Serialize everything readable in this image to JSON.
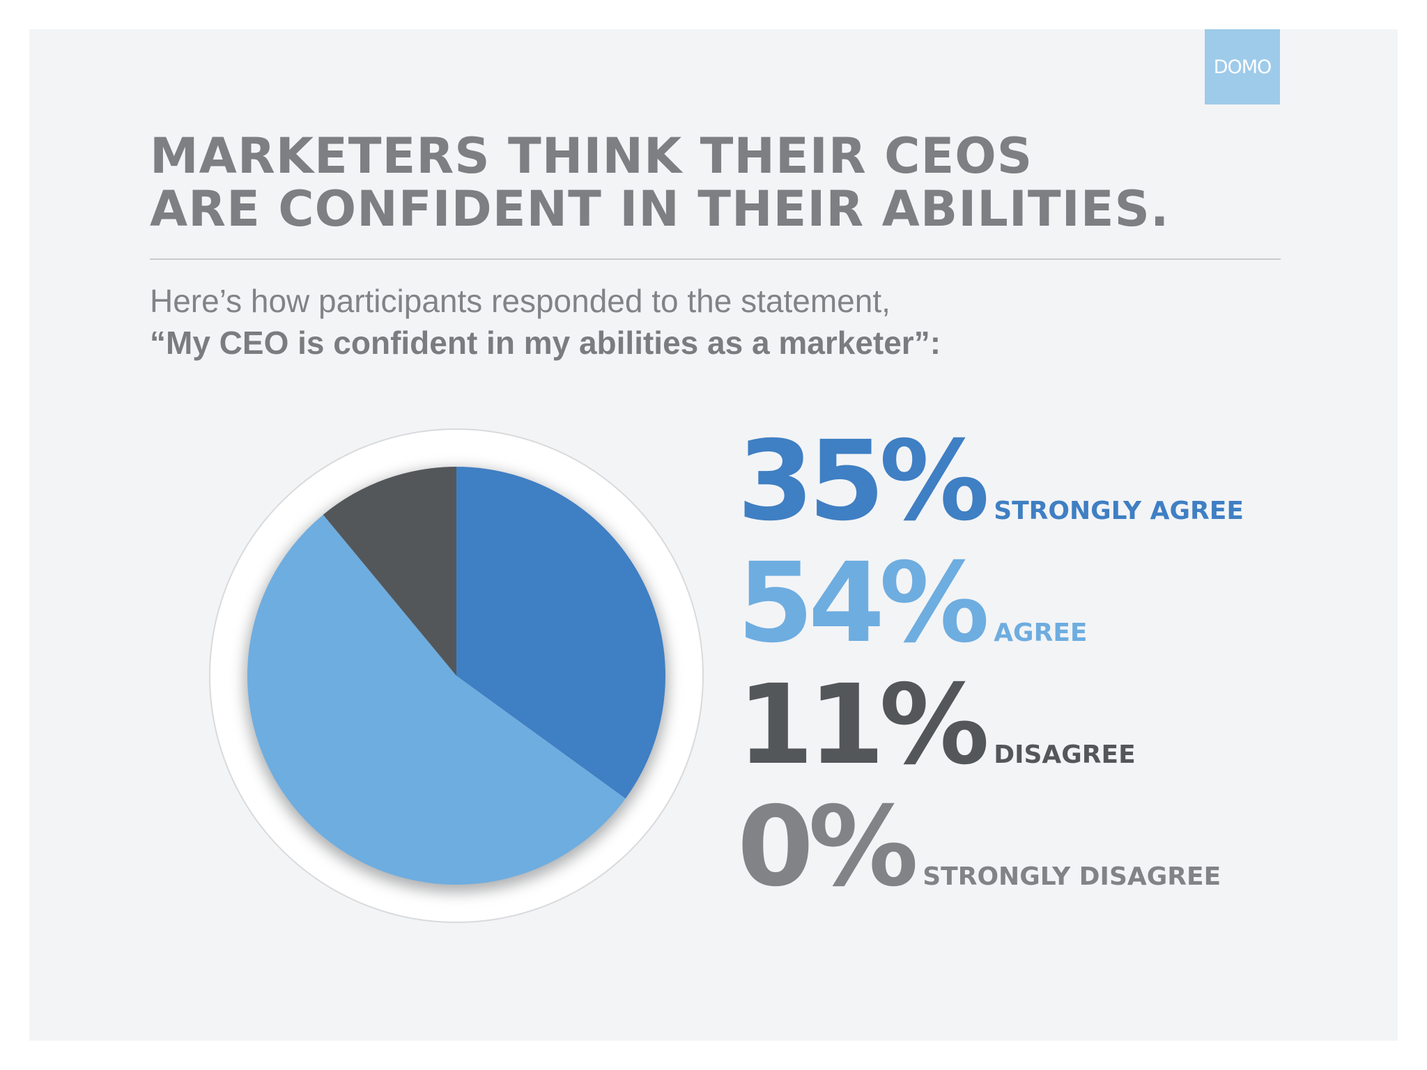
{
  "brand": {
    "logo_text": "DOMO",
    "logo_color": "#9ecbea"
  },
  "title": {
    "line1": "MARKETERS THINK THEIR CEOS",
    "line2": "ARE CONFIDENT IN THEIR ABILITIES."
  },
  "subtitle": {
    "line1": "Here’s how participants responded to the statement,",
    "line2": "“My CEO is confident in my abilities as a marketer”:"
  },
  "chart_data": {
    "type": "pie",
    "categories": [
      "STRONGLY AGREE",
      "AGREE",
      "DISAGREE",
      "STRONGLY DISAGREE"
    ],
    "values": [
      35,
      54,
      11,
      0
    ],
    "value_labels": [
      "35%",
      "54%",
      "11%",
      "0%"
    ],
    "colors": [
      "#3f7fc3",
      "#6eade0",
      "#54575a",
      "#828386"
    ],
    "unit": "%"
  }
}
